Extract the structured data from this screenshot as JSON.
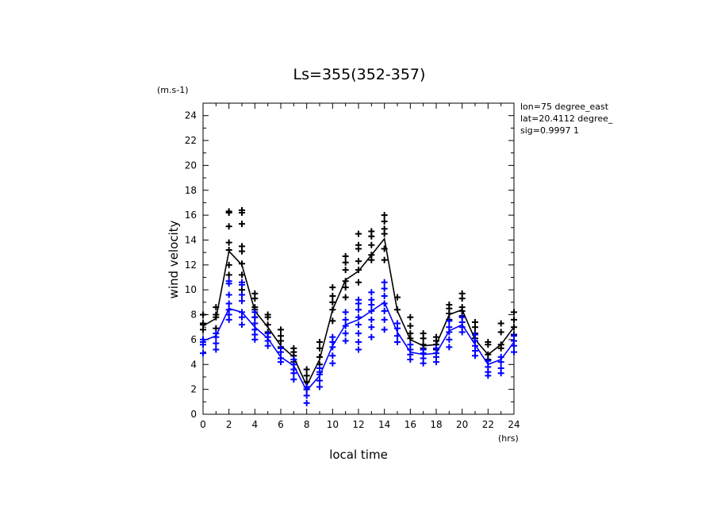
{
  "chart_data": {
    "type": "line",
    "title": "Ls=355(352-357)",
    "xlabel": "local time",
    "ylabel": "wind velocity",
    "x_unit": "(hrs)",
    "y_unit": "(m.s-1)",
    "xlim": [
      0,
      24
    ],
    "ylim": [
      0,
      25
    ],
    "xticks": [
      "0",
      "2",
      "4",
      "6",
      "8",
      "10",
      "12",
      "14",
      "16",
      "18",
      "20",
      "22",
      "24"
    ],
    "yticks": [
      "0",
      "2",
      "4",
      "6",
      "8",
      "10",
      "12",
      "14",
      "16",
      "18",
      "20",
      "22",
      "24"
    ],
    "grid": false,
    "annotations": [
      "lon=75 degree_east",
      "lat=20.4112 degree_",
      "sig=0.9997 1"
    ],
    "x": [
      0,
      1,
      2,
      3,
      4,
      5,
      6,
      7,
      8,
      9,
      10,
      11,
      12,
      13,
      14,
      15,
      16,
      17,
      18,
      19,
      20,
      21,
      22,
      23,
      24
    ],
    "series": [
      {
        "color": "#000000",
        "values": [
          7.1,
          7.7,
          13.1,
          12.0,
          8.3,
          7.0,
          5.5,
          4.6,
          2.3,
          4.4,
          8.4,
          10.8,
          11.5,
          12.8,
          14.1,
          8.3,
          6.0,
          5.5,
          5.6,
          8.0,
          8.4,
          6.0,
          4.8,
          5.6,
          7.0
        ],
        "points": [
          [
            0,
            6.8
          ],
          [
            0,
            7.2
          ],
          [
            0,
            7.3
          ],
          [
            0,
            8.0
          ],
          [
            1,
            6.9
          ],
          [
            1,
            7.8
          ],
          [
            1,
            8.0
          ],
          [
            1,
            8.6
          ],
          [
            2,
            11.2
          ],
          [
            2,
            12.0
          ],
          [
            2,
            13.2
          ],
          [
            2,
            13.8
          ],
          [
            2,
            15.1
          ],
          [
            2,
            16.2
          ],
          [
            2,
            16.3
          ],
          [
            3,
            10.0
          ],
          [
            3,
            11.2
          ],
          [
            3,
            12.1
          ],
          [
            3,
            13.1
          ],
          [
            3,
            13.5
          ],
          [
            3,
            15.3
          ],
          [
            3,
            16.2
          ],
          [
            3,
            16.4
          ],
          [
            4,
            7.8
          ],
          [
            4,
            8.4
          ],
          [
            4,
            8.6
          ],
          [
            4,
            9.3
          ],
          [
            4,
            9.7
          ],
          [
            5,
            6.6
          ],
          [
            5,
            7.2
          ],
          [
            5,
            7.8
          ],
          [
            5,
            8.0
          ],
          [
            6,
            5.4
          ],
          [
            6,
            5.9
          ],
          [
            6,
            6.3
          ],
          [
            6,
            6.8
          ],
          [
            7,
            4.2
          ],
          [
            7,
            4.7
          ],
          [
            7,
            5.0
          ],
          [
            7,
            5.3
          ],
          [
            8,
            2.0
          ],
          [
            8,
            2.6
          ],
          [
            8,
            3.1
          ],
          [
            8,
            3.6
          ],
          [
            9,
            4.0
          ],
          [
            9,
            4.6
          ],
          [
            9,
            5.3
          ],
          [
            9,
            5.8
          ],
          [
            10,
            7.5
          ],
          [
            10,
            8.4
          ],
          [
            10,
            9.0
          ],
          [
            10,
            9.5
          ],
          [
            10,
            10.2
          ],
          [
            11,
            9.4
          ],
          [
            11,
            10.2
          ],
          [
            11,
            10.7
          ],
          [
            11,
            11.6
          ],
          [
            11,
            12.2
          ],
          [
            11,
            12.7
          ],
          [
            12,
            10.6
          ],
          [
            12,
            11.6
          ],
          [
            12,
            12.3
          ],
          [
            12,
            13.3
          ],
          [
            12,
            13.6
          ],
          [
            12,
            14.5
          ],
          [
            13,
            12.4
          ],
          [
            13,
            12.8
          ],
          [
            13,
            13.6
          ],
          [
            13,
            14.3
          ],
          [
            13,
            14.7
          ],
          [
            14,
            12.4
          ],
          [
            14,
            13.3
          ],
          [
            14,
            14.5
          ],
          [
            14,
            14.9
          ],
          [
            14,
            15.5
          ],
          [
            14,
            16.0
          ],
          [
            15,
            8.4
          ],
          [
            15,
            9.4
          ],
          [
            16,
            6.1
          ],
          [
            16,
            6.5
          ],
          [
            16,
            7.1
          ],
          [
            16,
            7.8
          ],
          [
            17,
            5.3
          ],
          [
            17,
            5.6
          ],
          [
            17,
            6.1
          ],
          [
            17,
            6.5
          ],
          [
            18,
            5.2
          ],
          [
            18,
            5.6
          ],
          [
            18,
            5.9
          ],
          [
            18,
            6.2
          ],
          [
            19,
            7.6
          ],
          [
            19,
            8.1
          ],
          [
            19,
            8.5
          ],
          [
            19,
            8.8
          ],
          [
            20,
            7.9
          ],
          [
            20,
            8.3
          ],
          [
            20,
            8.6
          ],
          [
            20,
            9.3
          ],
          [
            20,
            9.7
          ],
          [
            21,
            6.1
          ],
          [
            21,
            6.5
          ],
          [
            21,
            7.0
          ],
          [
            21,
            7.4
          ],
          [
            22,
            4.4
          ],
          [
            22,
            4.8
          ],
          [
            22,
            5.6
          ],
          [
            22,
            5.8
          ],
          [
            23,
            5.3
          ],
          [
            23,
            5.6
          ],
          [
            23,
            6.6
          ],
          [
            23,
            7.3
          ],
          [
            24,
            6.4
          ],
          [
            24,
            7.0
          ],
          [
            24,
            7.6
          ],
          [
            24,
            8.2
          ]
        ]
      },
      {
        "color": "#0000ff",
        "values": [
          5.9,
          6.3,
          8.5,
          8.2,
          7.0,
          6.1,
          4.6,
          3.9,
          1.9,
          3.1,
          5.5,
          7.2,
          7.6,
          8.3,
          9.0,
          6.6,
          5.0,
          4.8,
          4.9,
          6.7,
          7.2,
          5.6,
          4.0,
          4.4,
          5.8
        ],
        "points": [
          [
            0,
            4.9
          ],
          [
            0,
            5.6
          ],
          [
            0,
            5.8
          ],
          [
            0,
            6.0
          ],
          [
            1,
            5.2
          ],
          [
            1,
            5.7
          ],
          [
            1,
            6.2
          ],
          [
            1,
            6.5
          ],
          [
            2,
            7.6
          ],
          [
            2,
            8.0
          ],
          [
            2,
            8.4
          ],
          [
            2,
            8.9
          ],
          [
            2,
            9.6
          ],
          [
            2,
            10.5
          ],
          [
            2,
            10.7
          ],
          [
            3,
            7.2
          ],
          [
            3,
            7.8
          ],
          [
            3,
            8.2
          ],
          [
            3,
            9.1
          ],
          [
            3,
            9.6
          ],
          [
            3,
            10.4
          ],
          [
            3,
            10.6
          ],
          [
            4,
            6.0
          ],
          [
            4,
            6.4
          ],
          [
            4,
            6.8
          ],
          [
            4,
            7.3
          ],
          [
            4,
            7.8
          ],
          [
            4,
            8.2
          ],
          [
            5,
            5.5
          ],
          [
            5,
            5.9
          ],
          [
            5,
            6.2
          ],
          [
            5,
            6.5
          ],
          [
            6,
            4.2
          ],
          [
            6,
            4.5
          ],
          [
            6,
            5.0
          ],
          [
            6,
            5.3
          ],
          [
            7,
            2.8
          ],
          [
            7,
            3.3
          ],
          [
            7,
            3.6
          ],
          [
            7,
            4.0
          ],
          [
            7,
            4.4
          ],
          [
            8,
            0.9
          ],
          [
            8,
            1.5
          ],
          [
            8,
            2.0
          ],
          [
            8,
            2.2
          ],
          [
            9,
            2.2
          ],
          [
            9,
            2.7
          ],
          [
            9,
            3.2
          ],
          [
            9,
            3.4
          ],
          [
            9,
            3.7
          ],
          [
            10,
            4.1
          ],
          [
            10,
            4.7
          ],
          [
            10,
            5.4
          ],
          [
            10,
            5.8
          ],
          [
            10,
            6.2
          ],
          [
            11,
            5.9
          ],
          [
            11,
            6.5
          ],
          [
            11,
            7.1
          ],
          [
            11,
            7.6
          ],
          [
            11,
            8.2
          ],
          [
            12,
            5.2
          ],
          [
            12,
            5.8
          ],
          [
            12,
            6.5
          ],
          [
            12,
            7.2
          ],
          [
            12,
            7.8
          ],
          [
            12,
            8.4
          ],
          [
            12,
            8.9
          ],
          [
            12,
            9.2
          ],
          [
            13,
            6.2
          ],
          [
            13,
            7.0
          ],
          [
            13,
            7.6
          ],
          [
            13,
            8.3
          ],
          [
            13,
            8.8
          ],
          [
            13,
            9.2
          ],
          [
            13,
            9.8
          ],
          [
            14,
            6.8
          ],
          [
            14,
            7.6
          ],
          [
            14,
            8.3
          ],
          [
            14,
            8.9
          ],
          [
            14,
            9.5
          ],
          [
            14,
            10.1
          ],
          [
            14,
            10.6
          ],
          [
            15,
            5.8
          ],
          [
            15,
            6.3
          ],
          [
            15,
            6.9
          ],
          [
            15,
            7.3
          ],
          [
            16,
            4.4
          ],
          [
            16,
            4.8
          ],
          [
            16,
            5.2
          ],
          [
            16,
            5.6
          ],
          [
            17,
            4.1
          ],
          [
            17,
            4.5
          ],
          [
            17,
            4.9
          ],
          [
            17,
            5.2
          ],
          [
            18,
            4.2
          ],
          [
            18,
            4.6
          ],
          [
            18,
            4.9
          ],
          [
            18,
            5.3
          ],
          [
            19,
            5.4
          ],
          [
            19,
            6.0
          ],
          [
            19,
            6.6
          ],
          [
            19,
            7.0
          ],
          [
            19,
            7.5
          ],
          [
            20,
            6.6
          ],
          [
            20,
            7.0
          ],
          [
            20,
            7.4
          ],
          [
            20,
            7.8
          ],
          [
            21,
            4.7
          ],
          [
            21,
            5.1
          ],
          [
            21,
            5.5
          ],
          [
            21,
            5.9
          ],
          [
            21,
            6.4
          ],
          [
            22,
            3.1
          ],
          [
            22,
            3.4
          ],
          [
            22,
            3.8
          ],
          [
            22,
            4.3
          ],
          [
            23,
            3.3
          ],
          [
            23,
            3.7
          ],
          [
            23,
            4.2
          ],
          [
            23,
            4.6
          ],
          [
            24,
            5.0
          ],
          [
            24,
            5.5
          ],
          [
            24,
            5.9
          ],
          [
            24,
            6.3
          ]
        ]
      }
    ]
  }
}
